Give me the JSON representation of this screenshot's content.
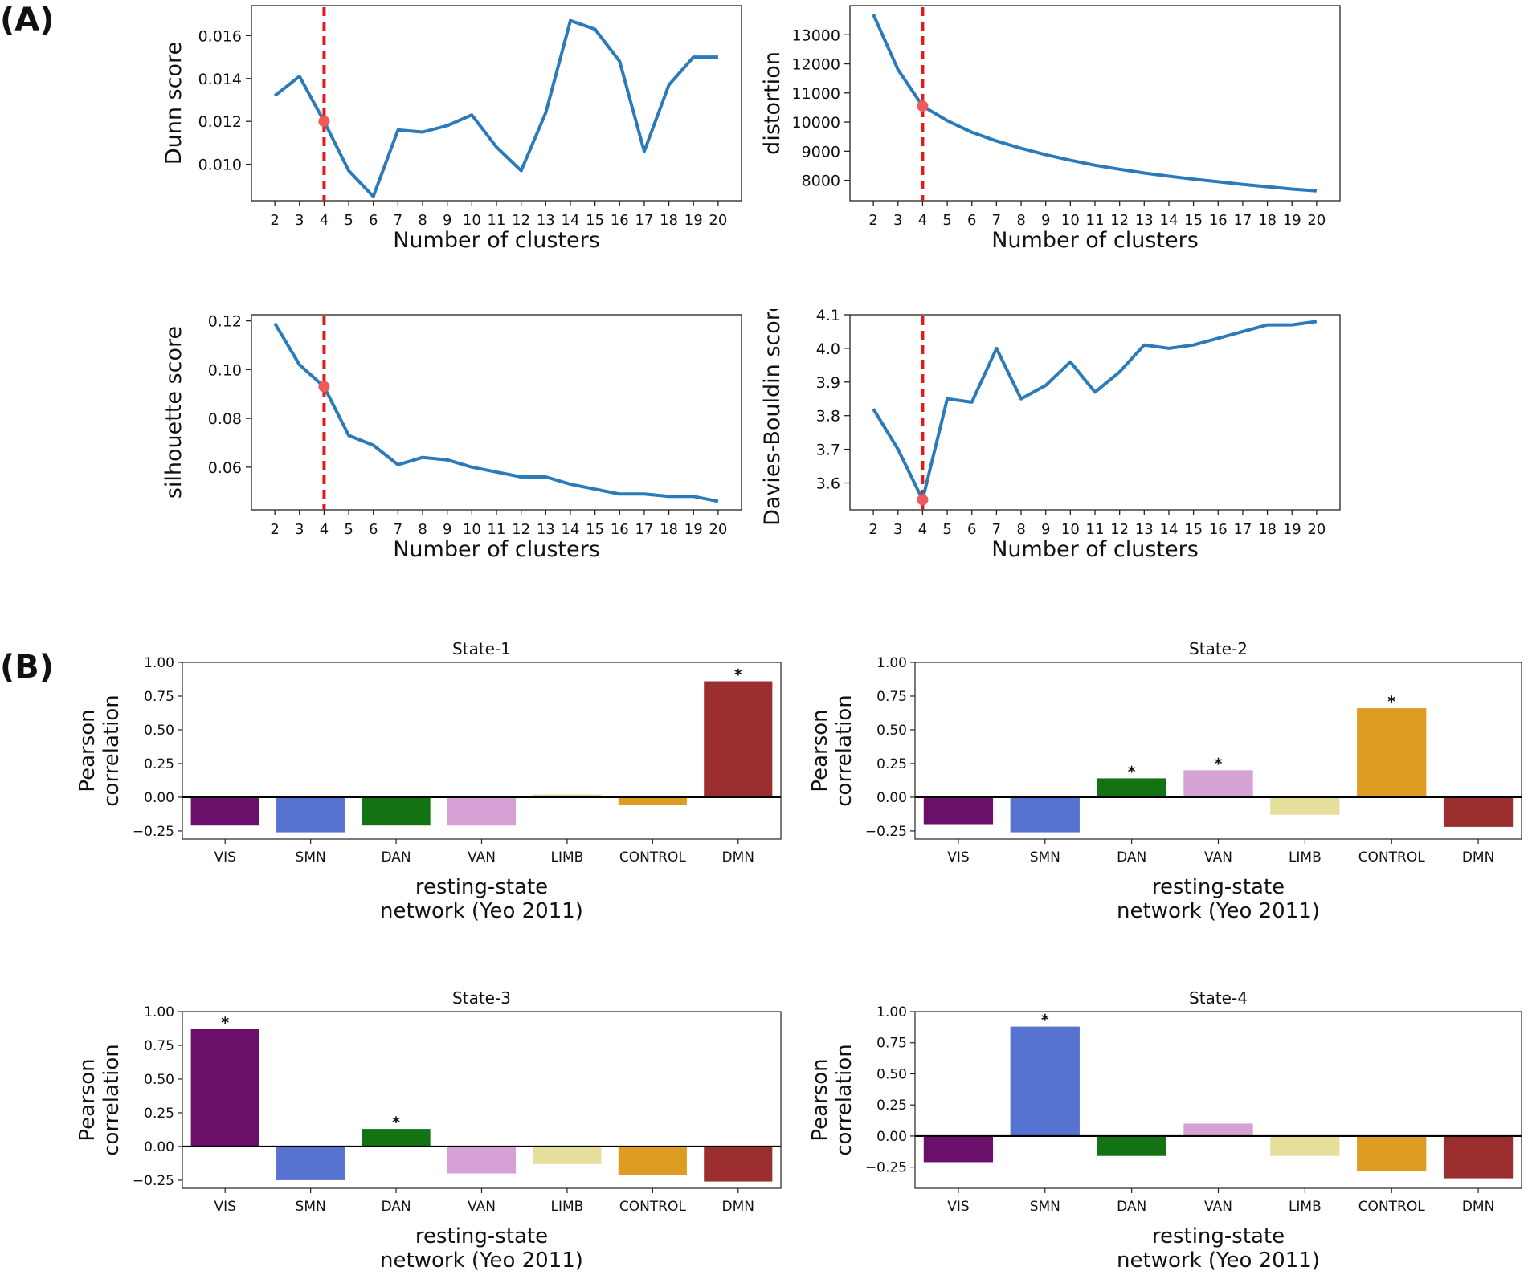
{
  "panel_labels": {
    "a": "(A)",
    "b": "(B)"
  },
  "colors": {
    "line": "#2b7bba",
    "vline": "#e31a1c",
    "marker": "#f05a5a",
    "axis": "#222222"
  },
  "network_colors": {
    "VIS": "#6b0f6b",
    "SMN": "#5673d1",
    "DAN": "#137313",
    "VAN": "#d6a2d6",
    "LIMB": "#e6df9c",
    "CONTROL": "#df9c22",
    "DMN": "#9b2f2f"
  },
  "chart_data": [
    {
      "id": "dunn",
      "type": "line",
      "title": "",
      "xlabel": "Number of clusters",
      "ylabel": "Dunn score",
      "x": [
        2,
        3,
        4,
        5,
        6,
        7,
        8,
        9,
        10,
        11,
        12,
        13,
        14,
        15,
        16,
        17,
        18,
        19,
        20
      ],
      "values": [
        0.0132,
        0.0141,
        0.012,
        0.0097,
        0.0085,
        0.0116,
        0.0115,
        0.0118,
        0.0123,
        0.0108,
        0.0097,
        0.0124,
        0.0167,
        0.0163,
        0.0148,
        0.0106,
        0.0137,
        0.015,
        0.015
      ],
      "yticks": [
        0.01,
        0.012,
        0.014,
        0.016
      ],
      "ytick_labels": [
        "0.010",
        "0.012",
        "0.014",
        "0.016"
      ],
      "ylim": [
        0.0083,
        0.0174
      ],
      "xlim": [
        1.05,
        20.95
      ],
      "selected_k": 4,
      "selected_value": 0.012
    },
    {
      "id": "distortion",
      "type": "line",
      "title": "",
      "xlabel": "Number of clusters",
      "ylabel": "distortion",
      "x": [
        2,
        3,
        4,
        5,
        6,
        7,
        8,
        9,
        10,
        11,
        12,
        13,
        14,
        15,
        16,
        17,
        18,
        19,
        20
      ],
      "values": [
        13700,
        11800,
        10550,
        10050,
        9650,
        9350,
        9100,
        8880,
        8690,
        8520,
        8380,
        8250,
        8140,
        8040,
        7950,
        7860,
        7780,
        7700,
        7640
      ],
      "yticks": [
        8000,
        9000,
        10000,
        11000,
        12000,
        13000
      ],
      "ytick_labels": [
        "8000",
        "9000",
        "10000",
        "11000",
        "12000",
        "13000"
      ],
      "ylim": [
        7300,
        14000
      ],
      "xlim": [
        1.05,
        20.95
      ],
      "selected_k": 4,
      "selected_value": 10550
    },
    {
      "id": "silhouette",
      "type": "line",
      "title": "",
      "xlabel": "Number of clusters",
      "ylabel": "silhouette score",
      "x": [
        2,
        3,
        4,
        5,
        6,
        7,
        8,
        9,
        10,
        11,
        12,
        13,
        14,
        15,
        16,
        17,
        18,
        19,
        20
      ],
      "values": [
        0.119,
        0.102,
        0.093,
        0.073,
        0.069,
        0.061,
        0.064,
        0.063,
        0.06,
        0.058,
        0.056,
        0.056,
        0.053,
        0.051,
        0.049,
        0.049,
        0.048,
        0.048,
        0.046
      ],
      "yticks": [
        0.06,
        0.08,
        0.1,
        0.12
      ],
      "ytick_labels": [
        "0.06",
        "0.08",
        "0.10",
        "0.12"
      ],
      "ylim": [
        0.0425,
        0.1225
      ],
      "xlim": [
        1.05,
        20.95
      ],
      "selected_k": 4,
      "selected_value": 0.093
    },
    {
      "id": "davies",
      "type": "line",
      "title": "",
      "xlabel": "Number of clusters",
      "ylabel": "Davies-Bouldin score",
      "x": [
        2,
        3,
        4,
        5,
        6,
        7,
        8,
        9,
        10,
        11,
        12,
        13,
        14,
        15,
        16,
        17,
        18,
        19,
        20
      ],
      "values": [
        3.82,
        3.7,
        3.55,
        3.85,
        3.84,
        4.0,
        3.85,
        3.89,
        3.96,
        3.87,
        3.93,
        4.01,
        4.0,
        4.01,
        4.03,
        4.05,
        4.07,
        4.07,
        4.08
      ],
      "yticks": [
        3.6,
        3.7,
        3.8,
        3.9,
        4.0,
        4.1
      ],
      "ytick_labels": [
        "3.6",
        "3.7",
        "3.8",
        "3.9",
        "4.0",
        "4.1"
      ],
      "ylim": [
        3.52,
        4.1
      ],
      "xlim": [
        1.05,
        20.95
      ],
      "selected_k": 4,
      "selected_value": 3.55
    },
    {
      "id": "state1",
      "type": "bar",
      "title": "State-1",
      "xlabel": "resting-state\nnetwork (Yeo 2011)",
      "ylabel": "Pearson\ncorrelation",
      "categories": [
        "VIS",
        "SMN",
        "DAN",
        "VAN",
        "LIMB",
        "CONTROL",
        "DMN"
      ],
      "values": [
        -0.21,
        -0.26,
        -0.21,
        -0.21,
        0.02,
        -0.06,
        0.86
      ],
      "significant": [
        "",
        "",
        "",
        "",
        "",
        "",
        "*"
      ],
      "yticks": [
        -0.25,
        0.0,
        0.25,
        0.5,
        0.75,
        1.0
      ],
      "ytick_labels": [
        "−0.25",
        "0.00",
        "0.25",
        "0.50",
        "0.75",
        "1.00"
      ],
      "ylim": [
        -0.31,
        1.0
      ]
    },
    {
      "id": "state2",
      "type": "bar",
      "title": "State-2",
      "xlabel": "resting-state\nnetwork (Yeo 2011)",
      "ylabel": "Pearson\ncorrelation",
      "categories": [
        "VIS",
        "SMN",
        "DAN",
        "VAN",
        "LIMB",
        "CONTROL",
        "DMN"
      ],
      "values": [
        -0.2,
        -0.26,
        0.14,
        0.2,
        -0.13,
        0.66,
        -0.22
      ],
      "significant": [
        "",
        "",
        "*",
        "*",
        "",
        "*",
        ""
      ],
      "yticks": [
        -0.25,
        0.0,
        0.25,
        0.5,
        0.75,
        1.0
      ],
      "ytick_labels": [
        "−0.25",
        "0.00",
        "0.25",
        "0.50",
        "0.75",
        "1.00"
      ],
      "ylim": [
        -0.31,
        1.0
      ]
    },
    {
      "id": "state3",
      "type": "bar",
      "title": "State-3",
      "xlabel": "resting-state\nnetwork (Yeo 2011)",
      "ylabel": "Pearson\ncorrelation",
      "categories": [
        "VIS",
        "SMN",
        "DAN",
        "VAN",
        "LIMB",
        "CONTROL",
        "DMN"
      ],
      "values": [
        0.87,
        -0.25,
        0.13,
        -0.2,
        -0.13,
        -0.21,
        -0.26
      ],
      "significant": [
        "*",
        "",
        "*",
        "",
        "",
        "",
        ""
      ],
      "yticks": [
        -0.25,
        0.0,
        0.25,
        0.5,
        0.75,
        1.0
      ],
      "ytick_labels": [
        "−0.25",
        "0.00",
        "0.25",
        "0.50",
        "0.75",
        "1.00"
      ],
      "ylim": [
        -0.31,
        1.0
      ]
    },
    {
      "id": "state4",
      "type": "bar",
      "title": "State-4",
      "xlabel": "resting-state\nnetwork (Yeo 2011)",
      "ylabel": "Pearson\ncorrelation",
      "categories": [
        "VIS",
        "SMN",
        "DAN",
        "VAN",
        "LIMB",
        "CONTROL",
        "DMN"
      ],
      "values": [
        -0.21,
        0.88,
        -0.16,
        0.1,
        -0.16,
        -0.28,
        -0.34
      ],
      "significant": [
        "",
        "*",
        "",
        "",
        "",
        "",
        ""
      ],
      "yticks": [
        -0.25,
        0.0,
        0.25,
        0.5,
        0.75,
        1.0
      ],
      "ytick_labels": [
        "−0.25",
        "0.00",
        "0.25",
        "0.50",
        "0.75",
        "1.00"
      ],
      "ylim": [
        -0.42,
        1.0
      ]
    }
  ]
}
